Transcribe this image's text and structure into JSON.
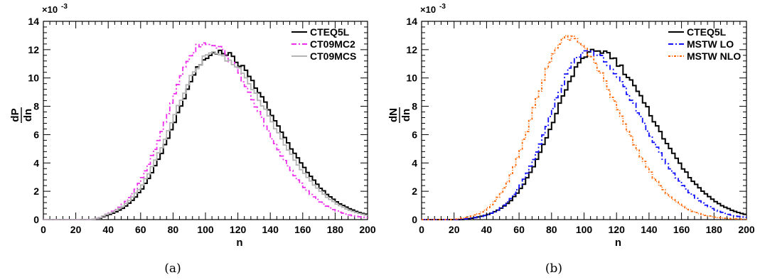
{
  "chart_data": [
    {
      "type": "line",
      "caption": "(a)",
      "xlabel": "n",
      "ylabel_num": "dP",
      "ylabel_den": "dn",
      "y_exponent_base": "×10",
      "y_exponent": "-3",
      "xlim": [
        0,
        200
      ],
      "ylim": [
        0,
        0.014
      ],
      "x_ticks": [
        "0",
        "20",
        "40",
        "60",
        "80",
        "100",
        "120",
        "140",
        "160",
        "180",
        "200"
      ],
      "y_ticks": [
        "0",
        "2",
        "4",
        "6",
        "8",
        "10",
        "12",
        "14"
      ],
      "bin_width": 2,
      "grid": false,
      "legend_position": "top-right",
      "series": [
        {
          "name": "CTEQ5L",
          "color": "#000000",
          "style": "solid",
          "mode": 107,
          "peak": 0.0119,
          "sigma_left": 25,
          "sigma_right": 35,
          "threshold": 30
        },
        {
          "name": "CT09MC2",
          "color": "#ee30ee",
          "style": "dashdot",
          "mode": 100,
          "peak": 0.0125,
          "sigma_left": 23,
          "sigma_right": 33,
          "threshold": 30
        },
        {
          "name": "CT09MCS",
          "color": "#b4b4b4",
          "style": "solid",
          "mode": 105,
          "peak": 0.0117,
          "sigma_left": 25,
          "sigma_right": 35,
          "threshold": 30
        }
      ]
    },
    {
      "type": "line",
      "caption": "(b)",
      "xlabel": "n",
      "ylabel_num": "dN",
      "ylabel_den": "dn",
      "y_exponent_base": "×10",
      "y_exponent": "-3",
      "xlim": [
        0,
        200
      ],
      "ylim": [
        0,
        0.014
      ],
      "x_ticks": [
        "0",
        "20",
        "40",
        "60",
        "80",
        "100",
        "120",
        "140",
        "160",
        "180",
        "200"
      ],
      "y_ticks": [
        "0",
        "2",
        "4",
        "6",
        "8",
        "10",
        "12",
        "14"
      ],
      "bin_width": 2,
      "grid": false,
      "legend_position": "top-right",
      "series": [
        {
          "name": "CTEQ5L",
          "color": "#000000",
          "style": "solid",
          "mode": 107,
          "peak": 0.0119,
          "sigma_left": 25,
          "sigma_right": 35,
          "threshold": 24
        },
        {
          "name": "MSTW LO",
          "color": "#1010ff",
          "style": "dashdot",
          "mode": 102,
          "peak": 0.0119,
          "sigma_left": 23,
          "sigma_right": 33,
          "threshold": 20
        },
        {
          "name": "MSTW NLO",
          "color": "#ff6600",
          "style": "dotdash",
          "mode": 90,
          "peak": 0.0128,
          "sigma_left": 21,
          "sigma_right": 31,
          "threshold": 16
        }
      ]
    }
  ]
}
